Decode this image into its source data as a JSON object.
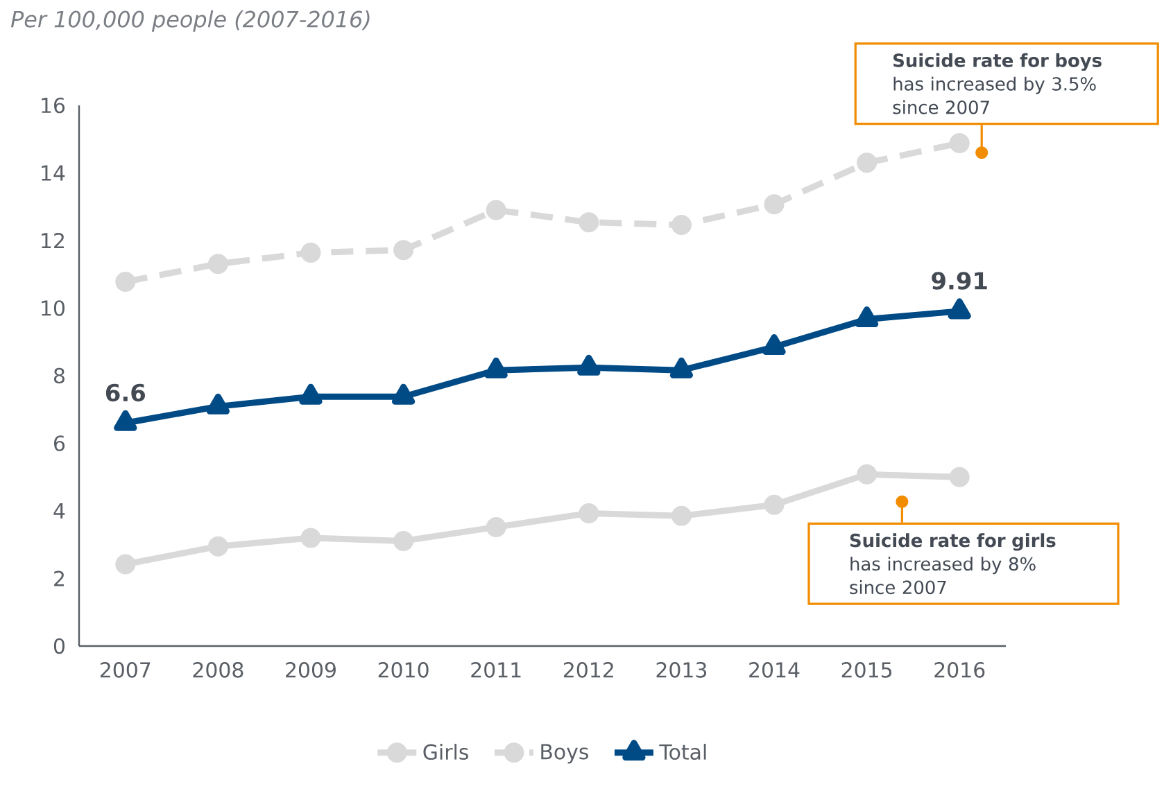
{
  "chart_data": {
    "type": "line",
    "title": "*Per 100,000 people (2007-2016)*",
    "categories": [
      "2007",
      "2008",
      "2009",
      "2010",
      "2011",
      "2012",
      "2013",
      "2014",
      "2015",
      "2016"
    ],
    "series": [
      {
        "name": "Girls",
        "color": "#d9d9d9",
        "marker": "circle",
        "line_style": "solid",
        "values": [
          2.42,
          2.95,
          3.2,
          3.11,
          3.52,
          3.93,
          3.85,
          4.18,
          5.08,
          5.0
        ]
      },
      {
        "name": "Boys",
        "color": "#d9d9d9",
        "marker": "circle",
        "line_style": "dashed",
        "values": [
          10.78,
          11.31,
          11.64,
          11.72,
          12.9,
          12.54,
          12.46,
          13.07,
          14.3,
          14.88
        ]
      },
      {
        "name": "Total",
        "color": "#004a86",
        "marker": "triangle",
        "line_style": "solid",
        "values": [
          6.6,
          7.09,
          7.38,
          7.38,
          8.16,
          8.24,
          8.16,
          8.85,
          9.67,
          9.91
        ],
        "value_labels": [
          "6.6",
          null,
          null,
          null,
          null,
          null,
          null,
          null,
          null,
          "9.91"
        ]
      }
    ],
    "ylim": [
      0,
      16
    ],
    "yticks": [
      0,
      2,
      4,
      6,
      8,
      10,
      12,
      14,
      16
    ],
    "grid": false,
    "legend": "bottom",
    "annotations": [
      {
        "text": "**Suicide rate for boys** has increased by 3.5% since 2007",
        "x": "2016",
        "y": 14.6
      },
      "**Suicide rate for girls** has increased by 8% since 2007"
    ]
  }
}
